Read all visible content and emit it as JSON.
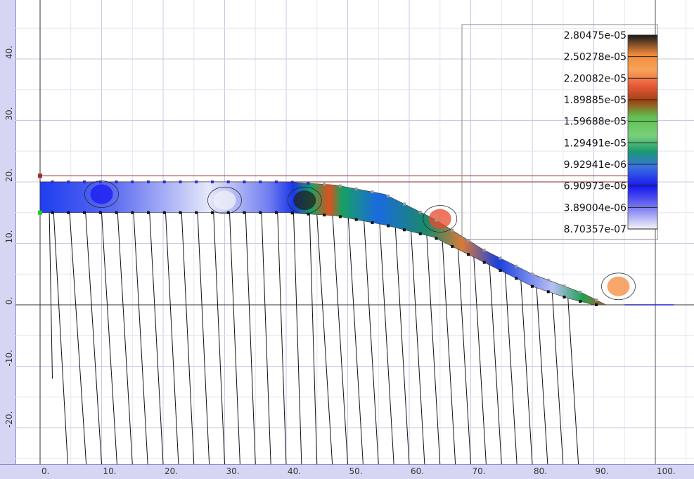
{
  "chart_data": {
    "type": "heatmap",
    "title": "",
    "xlabel": "",
    "ylabel": "",
    "xlim": [
      -5,
      105
    ],
    "ylim": [
      -28,
      50
    ],
    "x_ticks": [
      "0.",
      "10.",
      "20.",
      "30.",
      "40.",
      "50.",
      "60.",
      "70.",
      "80.",
      "90.",
      "100."
    ],
    "y_ticks": [
      "40.",
      "30.",
      "20.",
      "10.",
      "0.",
      "-10.",
      "-20."
    ],
    "grid": true,
    "legend_placement": "top-right",
    "colorbar_labels": [
      "2.80475e-05",
      "2.50278e-05",
      "2.20082e-05",
      "1.89885e-05",
      "1.59688e-05",
      "1.29491e-05",
      "9.92941e-06",
      "6.90973e-06",
      "3.89004e-06",
      "8.70357e-07"
    ],
    "colorbar_colors": [
      "#202020",
      "#f48a3a",
      "#e84a2a",
      "#b43a10",
      "#4ec94e",
      "#1a9a6a",
      "#3a6ae0",
      "#1a1af0",
      "#6a6af0",
      "#f0f0f8"
    ],
    "upper_boundary": [
      [
        0,
        20
      ],
      [
        10,
        20
      ],
      [
        20,
        20
      ],
      [
        30,
        20
      ],
      [
        40,
        20
      ],
      [
        48,
        19.5
      ],
      [
        56,
        18
      ],
      [
        64,
        14
      ],
      [
        72,
        9
      ],
      [
        80,
        5
      ],
      [
        88,
        2
      ],
      [
        92,
        0
      ],
      [
        98,
        0
      ]
    ],
    "lower_boundary": [
      [
        0,
        15
      ],
      [
        10,
        15
      ],
      [
        20,
        15
      ],
      [
        30,
        15
      ],
      [
        40,
        15
      ],
      [
        48,
        14.5
      ],
      [
        56,
        13
      ],
      [
        64,
        11
      ],
      [
        72,
        7
      ],
      [
        80,
        3
      ],
      [
        86,
        1
      ],
      [
        90,
        0
      ],
      [
        98,
        0
      ]
    ],
    "anchor_x": [
      -1.5,
      4.5,
      7.5,
      10,
      12.5,
      15,
      17.5,
      20,
      22.5,
      25,
      27.5,
      30,
      32.5,
      35,
      37.5,
      40,
      42.5,
      45,
      47.5,
      50,
      52.5,
      55,
      57.5,
      60,
      62.5,
      65,
      67.5,
      70,
      72.5,
      75,
      77.5,
      80,
      82.5,
      85,
      87.5
    ],
    "anchor_bottom": [
      -12
    ],
    "hotspots": [
      {
        "x": 43,
        "y": 17,
        "value": 2.80475e-05
      },
      {
        "x": 65,
        "y": 14,
        "value": 2.20082e-05
      },
      {
        "x": 94,
        "y": 3,
        "value": 2.50278e-05
      },
      {
        "x": 30,
        "y": 17,
        "value": 8.70357e-07
      },
      {
        "x": 10,
        "y": 18,
        "value": 6.90973e-06
      }
    ]
  }
}
